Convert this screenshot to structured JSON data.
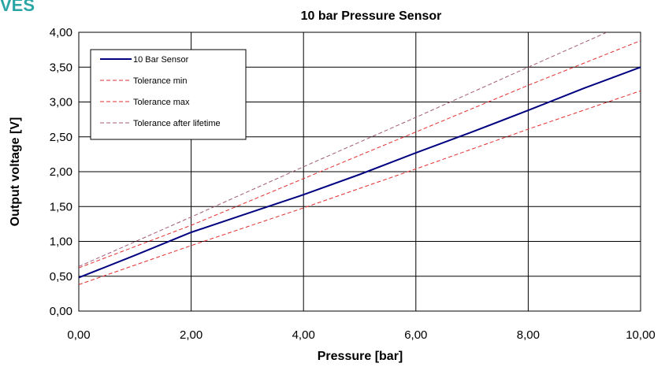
{
  "corner_text": "VES",
  "chart_data": {
    "type": "line",
    "title": "10 bar Pressure Sensor",
    "xlabel": "Pressure [bar]",
    "ylabel": "Output voltage [V]",
    "xlim": [
      0,
      10
    ],
    "ylim": [
      0,
      4
    ],
    "x_ticks": [
      "0,00",
      "2,00",
      "4,00",
      "6,00",
      "8,00",
      "10,00"
    ],
    "y_ticks": [
      "0,00",
      "0,50",
      "1,00",
      "1,50",
      "2,00",
      "2,50",
      "3,00",
      "3,50",
      "4,00"
    ],
    "grid": true,
    "legend_position": "top-left",
    "series": [
      {
        "name": "10 Bar Sensor",
        "color": "#000080",
        "dash": "solid",
        "x": [
          0,
          1,
          2,
          3,
          4,
          5,
          6,
          7,
          8,
          9,
          10
        ],
        "y": [
          0.48,
          0.8,
          1.13,
          1.4,
          1.67,
          1.96,
          2.27,
          2.57,
          2.88,
          3.2,
          3.5
        ]
      },
      {
        "name": "Tolerance min",
        "color": "#e03030",
        "dash": "dashed",
        "x": [
          0,
          2,
          4,
          6,
          8,
          10
        ],
        "y": [
          0.38,
          0.94,
          1.48,
          2.04,
          2.61,
          3.16
        ]
      },
      {
        "name": "Tolerance max",
        "color": "#e03030",
        "dash": "dashed",
        "x": [
          0,
          2,
          4,
          6,
          8,
          10
        ],
        "y": [
          0.62,
          1.23,
          1.9,
          2.57,
          3.24,
          3.88
        ]
      },
      {
        "name": "Tolerance after lifetime",
        "color": "#a05a7a",
        "dash": "dashed",
        "x": [
          0,
          2,
          4,
          6,
          8,
          9.4
        ],
        "y": [
          0.64,
          1.35,
          2.07,
          2.78,
          3.5,
          4.0
        ]
      }
    ]
  }
}
